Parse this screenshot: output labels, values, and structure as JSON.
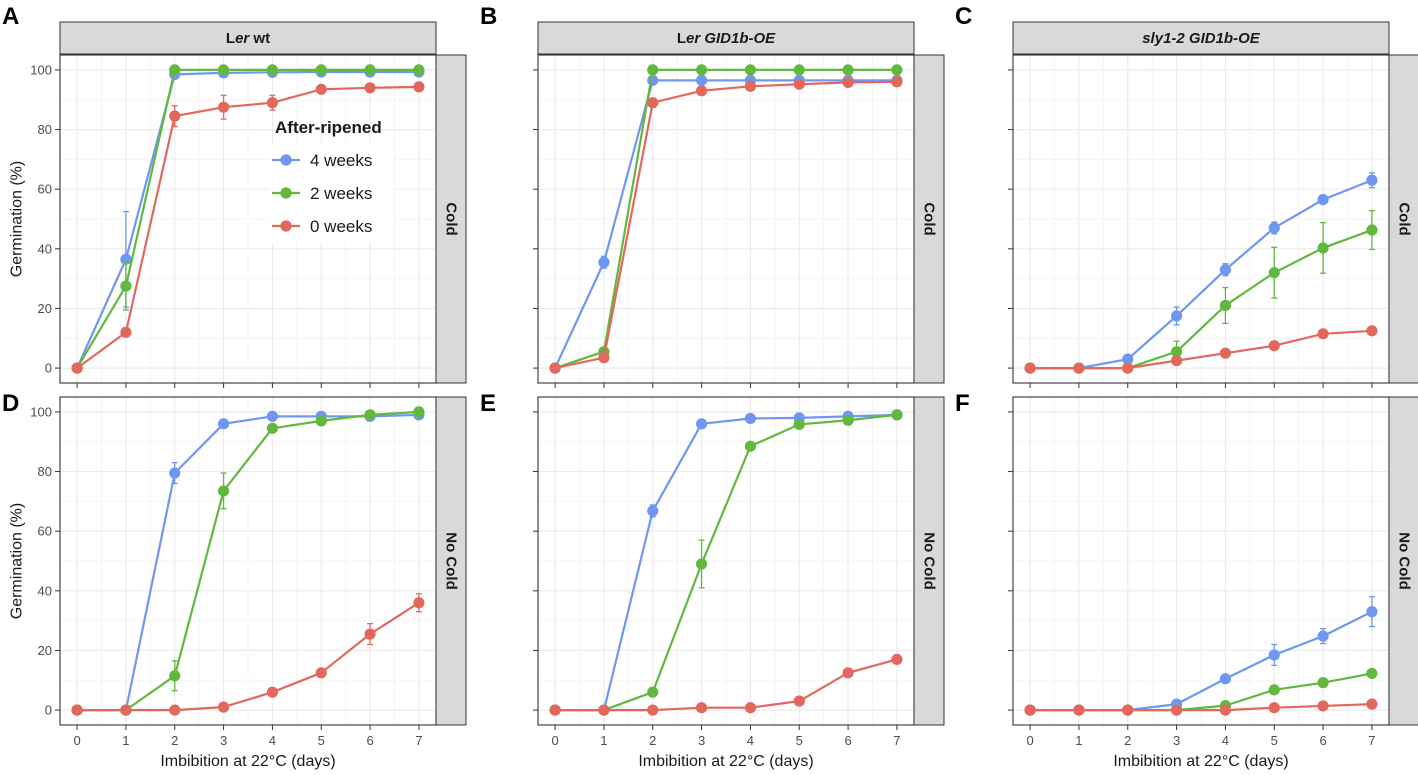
{
  "colors": {
    "4 weeks": "#6f97f2",
    "2 weeks": "#62b83e",
    "0 weeks": "#e2685e",
    "grid_major": "#ebebeb",
    "grid_minor": "#f5f5f5",
    "strip_fill": "#d9d9d9",
    "frame": "#333333"
  },
  "chart_data": {
    "type": "line",
    "x": [
      0,
      1,
      2,
      3,
      4,
      5,
      6,
      7
    ],
    "xlim": [
      -0.35,
      7.35
    ],
    "ylim": [
      -5,
      105
    ],
    "xticks": [
      0,
      1,
      2,
      3,
      4,
      5,
      6,
      7
    ],
    "yticks": [
      0,
      20,
      40,
      60,
      80,
      100
    ],
    "xlabel": "Imbibition at 22°C (days)",
    "ylabel": "Germination (%)",
    "legend": {
      "title": "After-ripened",
      "entries": [
        "4 weeks",
        "2 weeks",
        "0 weeks"
      ],
      "placement": "inside panel A, right of center"
    },
    "panels": [
      {
        "letter": "A",
        "column": "Ler wt",
        "column_prefix": "L",
        "column_italic": "er",
        "column_rest": " wt",
        "row": "Cold",
        "series": [
          {
            "name": "4 weeks",
            "values": [
              0,
              36.5,
              98.5,
              99,
              99.2,
              99.3,
              99.3,
              99.3
            ],
            "errors": [
              0,
              16,
              1,
              0.5,
              0.3,
              0.3,
              0.3,
              0.3
            ]
          },
          {
            "name": "2 weeks",
            "values": [
              0,
              27.5,
              100,
              100,
              100,
              100,
              100,
              100
            ],
            "errors": [
              0,
              8,
              0,
              0,
              0,
              0,
              0,
              0
            ]
          },
          {
            "name": "0 weeks",
            "values": [
              0,
              12,
              84.5,
              87.5,
              89,
              93.5,
              94,
              94.3
            ],
            "errors": [
              0,
              1.5,
              3.5,
              4,
              2.5,
              1.2,
              1,
              1
            ]
          }
        ]
      },
      {
        "letter": "B",
        "column": "Ler GID1b-OE",
        "column_prefix": "L",
        "column_italic": "er GID1b-OE",
        "column_rest": "",
        "row": "Cold",
        "series": [
          {
            "name": "4 weeks",
            "values": [
              0,
              35.5,
              96.5,
              96.5,
              96.5,
              96.5,
              96.5,
              96.5
            ],
            "errors": [
              0,
              2,
              0.5,
              0.5,
              0.5,
              0.5,
              0.5,
              0.5
            ]
          },
          {
            "name": "2 weeks",
            "values": [
              0,
              5.5,
              100,
              100,
              100,
              100,
              100,
              100
            ],
            "errors": [
              0,
              0.5,
              0,
              0,
              0,
              0,
              0,
              0
            ]
          },
          {
            "name": "0 weeks",
            "values": [
              0,
              3.5,
              89,
              93,
              94.5,
              95.2,
              95.8,
              96
            ],
            "errors": [
              0,
              0.5,
              1.5,
              1,
              0.7,
              0.5,
              0.5,
              0.5
            ]
          }
        ]
      },
      {
        "letter": "C",
        "column": "sly1-2 GID1b-OE",
        "column_prefix": "",
        "column_italic": "sly1-2 GID1b-OE",
        "column_rest": "",
        "row": "Cold",
        "series": [
          {
            "name": "4 weeks",
            "values": [
              0,
              0,
              3,
              17.5,
              33,
              47,
              56.5,
              63
            ],
            "errors": [
              0,
              0,
              0.5,
              3,
              2,
              2,
              1,
              2.5
            ]
          },
          {
            "name": "2 weeks",
            "values": [
              0,
              0,
              0,
              5.5,
              21,
              32,
              40.3,
              46.3
            ],
            "errors": [
              0,
              0,
              0,
              3.5,
              6,
              8.5,
              8.5,
              6.5
            ]
          },
          {
            "name": "0 weeks",
            "values": [
              0,
              0,
              0,
              2.5,
              5,
              7.5,
              11.5,
              12.5
            ],
            "errors": [
              0,
              0,
              0,
              0.5,
              0.5,
              0.5,
              0.5,
              0.5
            ]
          }
        ]
      },
      {
        "letter": "D",
        "column": "Ler wt",
        "row": "No Cold",
        "series": [
          {
            "name": "4 weeks",
            "values": [
              0,
              0,
              79.5,
              96,
              98.5,
              98.5,
              98.5,
              99
            ],
            "errors": [
              0,
              0,
              3.5,
              1,
              0.5,
              0.5,
              0.5,
              0.5
            ]
          },
          {
            "name": "2 weeks",
            "values": [
              0,
              0,
              11.5,
              73.5,
              94.5,
              97,
              99,
              100
            ],
            "errors": [
              0,
              0,
              5,
              6,
              0.5,
              0.5,
              0.5,
              0
            ]
          },
          {
            "name": "0 weeks",
            "values": [
              0,
              0,
              0,
              1,
              6,
              12.5,
              25.5,
              36
            ],
            "errors": [
              0,
              0,
              0,
              0.5,
              0.5,
              0.5,
              3.5,
              3
            ]
          }
        ]
      },
      {
        "letter": "E",
        "column": "Ler GID1b-OE",
        "row": "No Cold",
        "series": [
          {
            "name": "4 weeks",
            "values": [
              0,
              0,
              66.8,
              96,
              97.8,
              98,
              98.5,
              99
            ],
            "errors": [
              0,
              0,
              2,
              0.5,
              0.5,
              0.5,
              0.5,
              0.5
            ]
          },
          {
            "name": "2 weeks",
            "values": [
              0,
              0,
              6,
              49,
              88.5,
              95.8,
              97.2,
              99
            ],
            "errors": [
              0,
              0,
              1,
              8,
              1,
              1,
              1,
              0.5
            ]
          },
          {
            "name": "0 weeks",
            "values": [
              0,
              0,
              0,
              0.8,
              0.8,
              3,
              12.5,
              17
            ],
            "errors": [
              0,
              0,
              0,
              0.5,
              0.5,
              0.5,
              0.5,
              0.5
            ]
          }
        ]
      },
      {
        "letter": "F",
        "column": "sly1-2 GID1b-OE",
        "row": "No Cold",
        "series": [
          {
            "name": "4 weeks",
            "values": [
              0,
              0,
              0,
              2,
              10.5,
              18.5,
              24.8,
              33
            ],
            "errors": [
              0,
              0,
              0,
              0.5,
              0.5,
              3.5,
              2.5,
              5
            ]
          },
          {
            "name": "2 weeks",
            "values": [
              0,
              0,
              0,
              0,
              1.5,
              6.8,
              9.2,
              12.3
            ],
            "errors": [
              0,
              0,
              0,
              0,
              0.5,
              1,
              0.5,
              0.5
            ]
          },
          {
            "name": "0 weeks",
            "values": [
              0,
              0,
              0,
              0,
              0,
              0.8,
              1.4,
              2
            ],
            "errors": [
              0,
              0,
              0,
              0,
              0,
              0.5,
              0.5,
              0.5
            ]
          }
        ]
      }
    ]
  }
}
